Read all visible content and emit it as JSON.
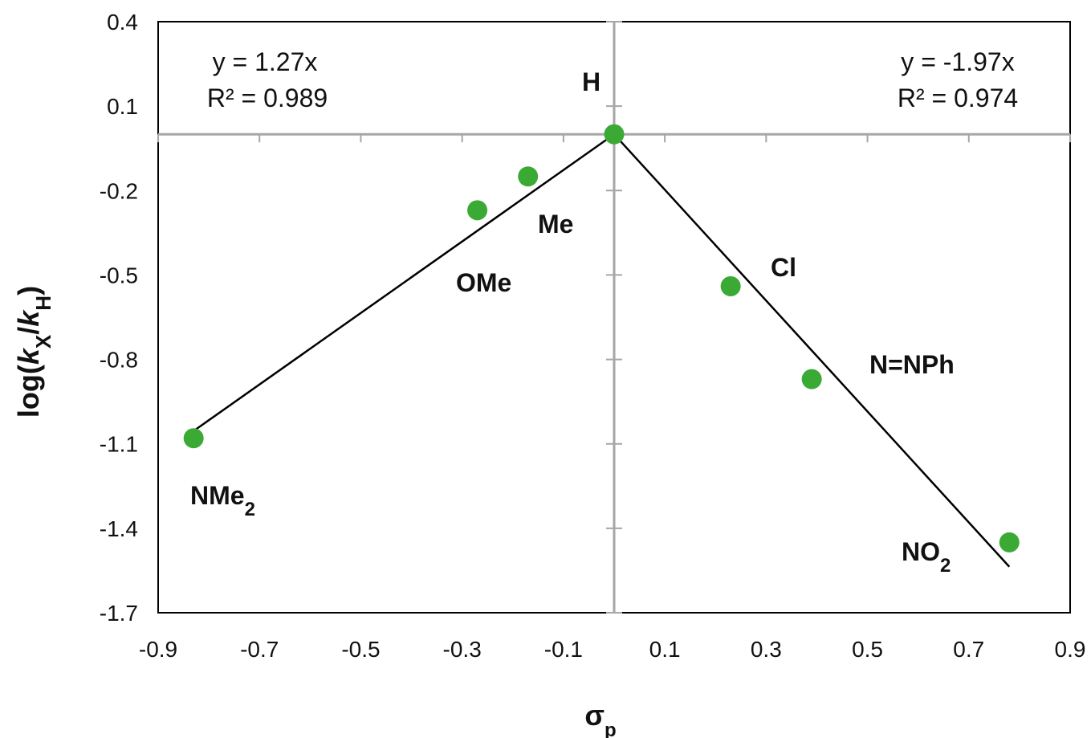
{
  "chart_data": {
    "type": "scatter",
    "title": "",
    "xlabel": "σp",
    "ylabel": "log(kX/kH)",
    "xlim": [
      -0.9,
      0.9
    ],
    "ylim": [
      -1.7,
      0.4
    ],
    "x_ticks": [
      -0.9,
      -0.7,
      -0.5,
      -0.3,
      -0.1,
      0.1,
      0.3,
      0.5,
      0.7,
      0.9
    ],
    "y_ticks": [
      0.4,
      0.1,
      -0.2,
      -0.5,
      -0.8,
      -1.1,
      -1.4,
      -1.7
    ],
    "x_tick_labels": [
      "-0.9",
      "-0.7",
      "-0.5",
      "-0.3",
      "-0.1",
      "0.1",
      "0.3",
      "0.5",
      "0.7",
      "0.9"
    ],
    "y_tick_labels": [
      "0.4",
      "0.1",
      "-0.2",
      "-0.5",
      "-0.8",
      "-1.1",
      "-1.4",
      "-1.7"
    ],
    "grid": false,
    "points": [
      {
        "label": "NMe2",
        "x": -0.83,
        "y": -1.08
      },
      {
        "label": "OMe",
        "x": -0.27,
        "y": -0.27
      },
      {
        "label": "Me",
        "x": -0.17,
        "y": -0.15
      },
      {
        "label": "H",
        "x": 0.0,
        "y": 0.0
      },
      {
        "label": "Cl",
        "x": 0.23,
        "y": -0.54
      },
      {
        "label": "N=NPh",
        "x": 0.39,
        "y": -0.87
      },
      {
        "label": "NO2",
        "x": 0.78,
        "y": -1.45
      }
    ],
    "fits": [
      {
        "equation": "y = 1.27x",
        "r2": "R² = 0.989",
        "slope": 1.27,
        "x_range": [
          -0.83,
          0.0
        ]
      },
      {
        "equation": "y = -1.97x",
        "r2": "R² = 0.974",
        "slope": -1.97,
        "x_range": [
          0.0,
          0.78
        ]
      }
    ],
    "colors": {
      "points": "#3aaa35",
      "fit_line": "#000000",
      "zero_lines": "#a6a6a6",
      "frame": "#000000"
    }
  }
}
